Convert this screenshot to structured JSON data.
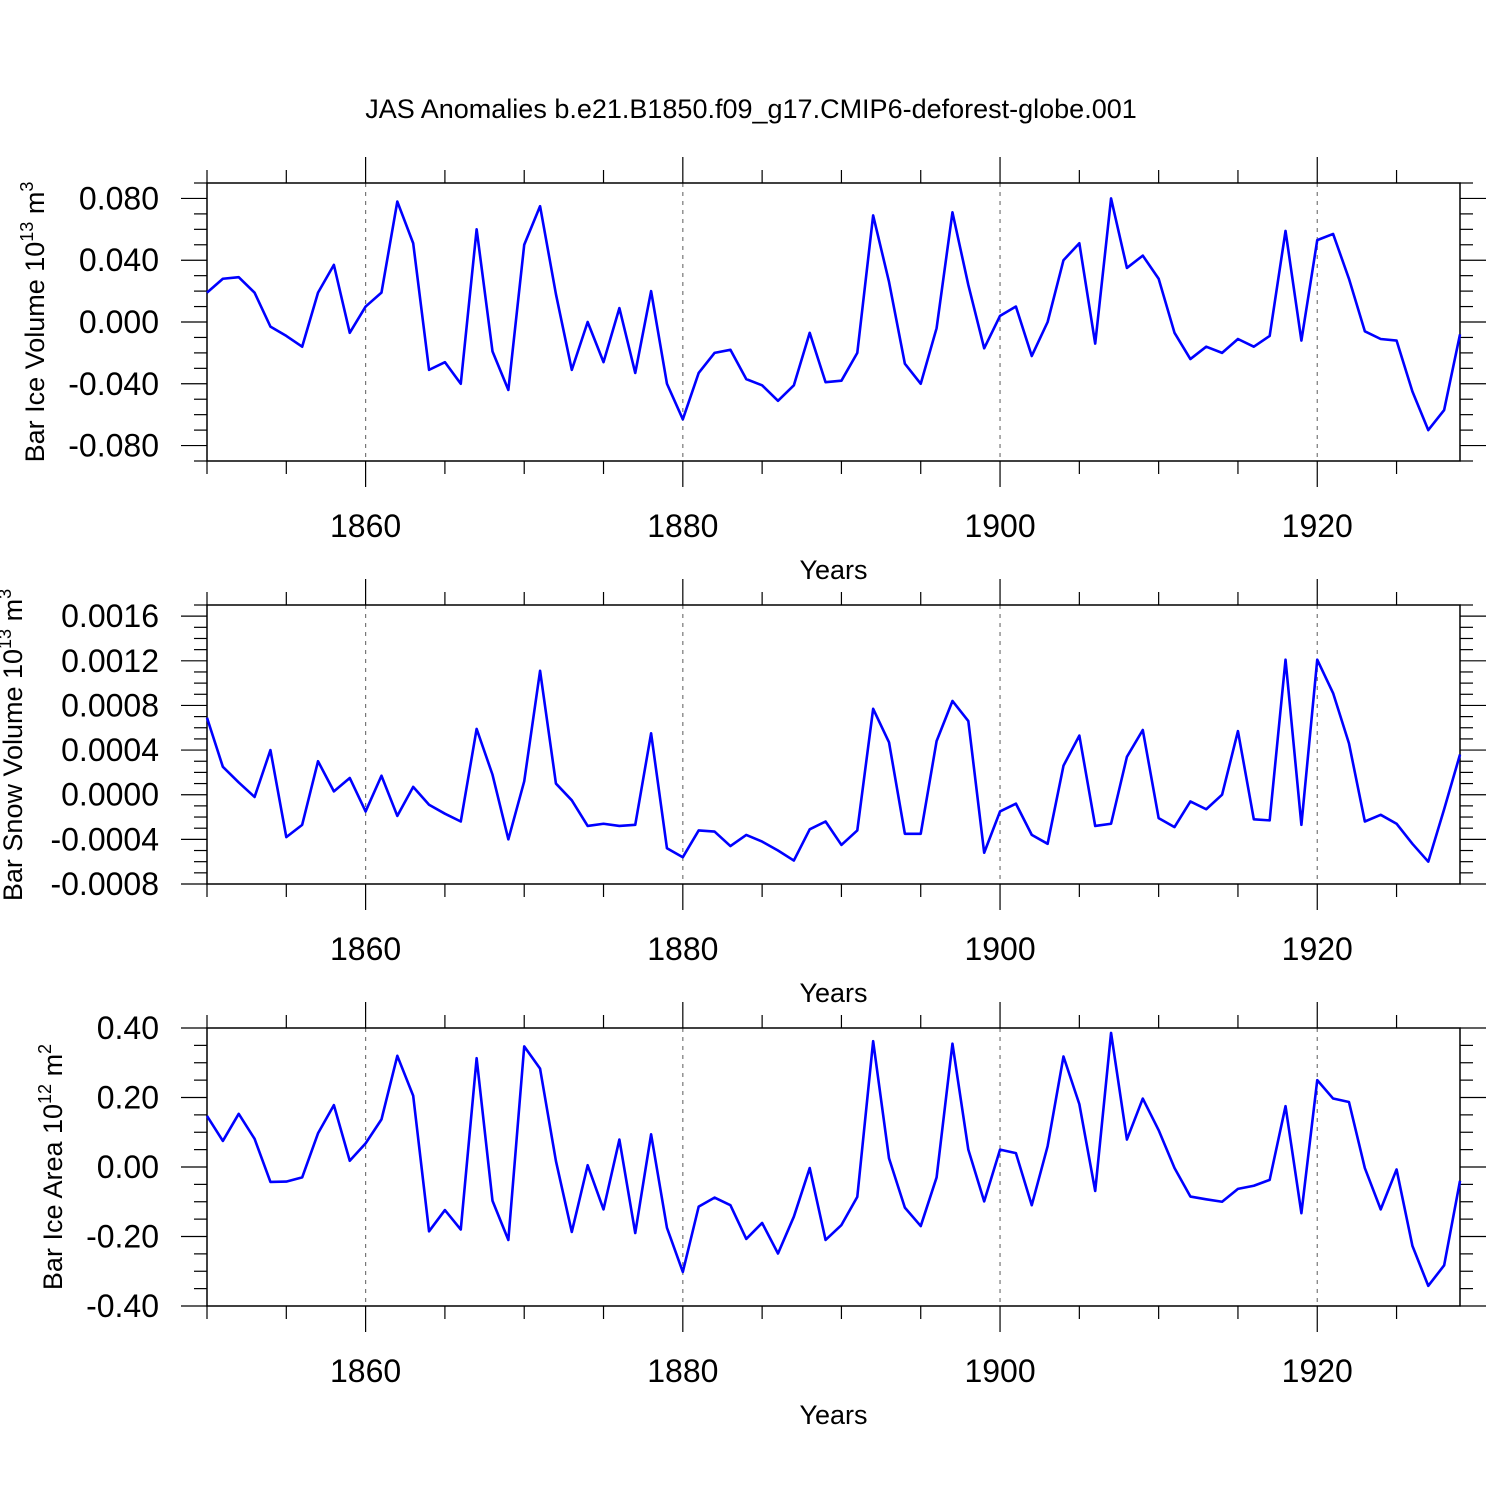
{
  "title": "JAS Anomalies b.e21.B1850.f09_g17.CMIP6-deforest-globe.001",
  "colors": {
    "line": "#0000ff",
    "frame": "#000000",
    "grid": "#777777"
  },
  "chart_data": [
    {
      "type": "line",
      "xlabel": "Years",
      "ylabel": {
        "text": "Bar Ice Volume 10",
        "exp": "13",
        "unit": " m",
        "unit_exp": "3"
      },
      "xlim": [
        1850,
        1929
      ],
      "ylim": [
        -0.09,
        0.09
      ],
      "yticks": [
        -0.08,
        -0.04,
        0.0,
        0.04,
        0.08
      ],
      "ytick_labels": [
        "-0.080",
        "-0.040",
        "0.000",
        "0.040",
        "0.080"
      ],
      "yminor": 0.01,
      "xticks": [
        1860,
        1880,
        1900,
        1920
      ],
      "xtick_labels": [
        "1860",
        "1880",
        "1900",
        "1920"
      ],
      "xminor": 5,
      "grid_x": [
        1860,
        1880,
        1900,
        1920
      ],
      "x_start": 1850,
      "values": [
        0.019,
        0.028,
        0.029,
        0.019,
        -0.003,
        -0.009,
        -0.016,
        0.019,
        0.037,
        -0.007,
        0.01,
        0.019,
        0.078,
        0.051,
        -0.031,
        -0.026,
        -0.04,
        0.06,
        -0.019,
        -0.044,
        0.05,
        0.075,
        0.018,
        -0.031,
        0.0,
        -0.026,
        0.009,
        -0.033,
        0.02,
        -0.04,
        -0.063,
        -0.033,
        -0.02,
        -0.018,
        -0.037,
        -0.041,
        -0.051,
        -0.041,
        -0.007,
        -0.039,
        -0.038,
        -0.02,
        0.069,
        0.026,
        -0.027,
        -0.04,
        -0.004,
        0.071,
        0.024,
        -0.017,
        0.004,
        0.01,
        -0.022,
        0.0,
        0.04,
        0.051,
        -0.014,
        0.08,
        0.035,
        0.043,
        0.028,
        -0.007,
        -0.024,
        -0.016,
        -0.02,
        -0.011,
        -0.016,
        -0.009,
        0.059,
        -0.012,
        0.053,
        0.057,
        0.028,
        -0.006,
        -0.011,
        -0.012,
        -0.045,
        -0.07,
        -0.057,
        -0.008
      ]
    },
    {
      "type": "line",
      "xlabel": "Years",
      "ylabel": {
        "text": "Bar Snow Volume 10",
        "exp": "13",
        "unit": " m",
        "unit_exp": "3"
      },
      "xlim": [
        1850,
        1929
      ],
      "ylim": [
        -0.0008,
        0.0017
      ],
      "yticks": [
        -0.0008,
        -0.0004,
        0.0,
        0.0004,
        0.0008,
        0.0012,
        0.0016
      ],
      "ytick_labels": [
        "-0.0008",
        "-0.0004",
        "0.0000",
        "0.0004",
        "0.0008",
        "0.0012",
        "0.0016"
      ],
      "yminor": 0.0001,
      "xticks": [
        1860,
        1880,
        1900,
        1920
      ],
      "xtick_labels": [
        "1860",
        "1880",
        "1900",
        "1920"
      ],
      "xminor": 5,
      "grid_x": [
        1860,
        1880,
        1900,
        1920
      ],
      "x_start": 1850,
      "values": [
        0.00069,
        0.00025,
        0.00011,
        -2e-05,
        0.0004,
        -0.00038,
        -0.00027,
        0.0003,
        3e-05,
        0.00015,
        -0.00015,
        0.00017,
        -0.00019,
        7e-05,
        -9e-05,
        -0.00017,
        -0.00024,
        0.00059,
        0.00018,
        -0.0004,
        0.00012,
        0.00111,
        0.0001,
        -5e-05,
        -0.00028,
        -0.00026,
        -0.00028,
        -0.00027,
        0.00055,
        -0.00048,
        -0.00056,
        -0.00032,
        -0.00033,
        -0.00046,
        -0.00036,
        -0.00042,
        -0.0005,
        -0.00059,
        -0.00031,
        -0.00024,
        -0.00045,
        -0.00032,
        0.00077,
        0.00047,
        -0.00035,
        -0.00035,
        0.00048,
        0.00084,
        0.00066,
        -0.00052,
        -0.00015,
        -8e-05,
        -0.00036,
        -0.00044,
        0.00026,
        0.00053,
        -0.00028,
        -0.00026,
        0.00034,
        0.00058,
        -0.00021,
        -0.00029,
        -6e-05,
        -0.00013,
        0.0,
        0.00057,
        -0.00022,
        -0.00023,
        0.00121,
        -0.00027,
        0.00121,
        0.00091,
        0.00046,
        -0.00024,
        -0.00018,
        -0.00026,
        -0.00044,
        -0.0006,
        -0.00013,
        0.00036
      ]
    },
    {
      "type": "line",
      "xlabel": "Years",
      "ylabel": {
        "text": "Bar Ice Area 10",
        "exp": "12",
        "unit": " m",
        "unit_exp": "2"
      },
      "xlim": [
        1850,
        1929
      ],
      "ylim": [
        -0.4,
        0.4
      ],
      "yticks": [
        -0.4,
        -0.2,
        0.0,
        0.2,
        0.4
      ],
      "ytick_labels": [
        "-0.40",
        "-0.20",
        "0.00",
        "0.20",
        "0.40"
      ],
      "yminor": 0.05,
      "xticks": [
        1860,
        1880,
        1900,
        1920
      ],
      "xtick_labels": [
        "1860",
        "1880",
        "1900",
        "1920"
      ],
      "xminor": 5,
      "grid_x": [
        1860,
        1880,
        1900,
        1920
      ],
      "x_start": 1850,
      "values": [
        0.147,
        0.075,
        0.153,
        0.081,
        -0.043,
        -0.042,
        -0.03,
        0.097,
        0.178,
        0.018,
        0.068,
        0.137,
        0.32,
        0.205,
        -0.185,
        -0.124,
        -0.18,
        0.313,
        -0.097,
        -0.21,
        0.347,
        0.283,
        0.017,
        -0.187,
        0.005,
        -0.122,
        0.079,
        -0.19,
        0.094,
        -0.175,
        -0.302,
        -0.114,
        -0.088,
        -0.11,
        -0.207,
        -0.161,
        -0.249,
        -0.143,
        -0.003,
        -0.21,
        -0.167,
        -0.086,
        0.362,
        0.025,
        -0.117,
        -0.17,
        -0.03,
        0.355,
        0.05,
        -0.099,
        0.05,
        0.04,
        -0.11,
        0.06,
        0.318,
        0.181,
        -0.069,
        0.386,
        0.079,
        0.197,
        0.106,
        -0.003,
        -0.085,
        -0.093,
        -0.1,
        -0.063,
        -0.054,
        -0.037,
        0.175,
        -0.133,
        0.25,
        0.197,
        0.187,
        -0.003,
        -0.122,
        -0.007,
        -0.227,
        -0.342,
        -0.283,
        -0.04
      ]
    }
  ]
}
